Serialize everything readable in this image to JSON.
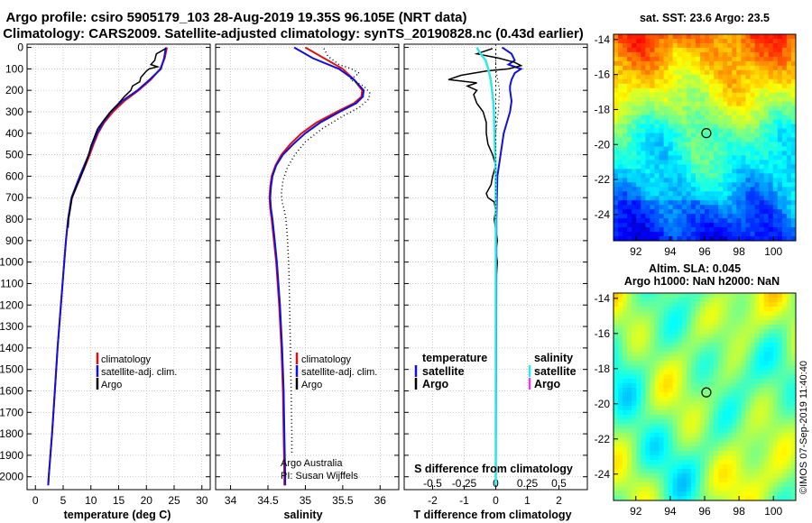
{
  "header": {
    "title_line1": "Argo profile: csiro 5905179_103 28-Aug-2019 19.35S 96.105E (NRT data)",
    "title_line2": "Climatology: CARS2009. Satellite-adjusted climatology: synTS_20190828.nc (0.43d earlier)"
  },
  "credit": {
    "line1": "Argo Australia",
    "line2": "PI: Susan Wijffels",
    "stamp": "©IMOS 07-Sep-2019 11:40:40"
  },
  "colors": {
    "climatology": "#e01010",
    "satellite": "#1010e0",
    "argo": "#000000",
    "sal_satellite": "#30e8e8",
    "sal_argo": "#e040e0"
  },
  "chart_data": [
    {
      "type": "line",
      "id": "temperature-profile",
      "xlabel": "temperature (deg C)",
      "xlim": [
        -1.5,
        31.5
      ],
      "ylim": [
        2060,
        -15
      ],
      "x_ticks": [
        0,
        5,
        10,
        15,
        20,
        25,
        30
      ],
      "x_tick_labels": [
        "0",
        "5",
        "10",
        "15",
        "20",
        "25",
        "30"
      ],
      "y_ticks": [
        0,
        100,
        200,
        300,
        400,
        500,
        600,
        700,
        800,
        900,
        1000,
        1100,
        1200,
        1300,
        1400,
        1500,
        1600,
        1700,
        1800,
        1900,
        2000
      ],
      "y_tick_labels": [
        "0",
        "100",
        "200",
        "300",
        "400",
        "500",
        "600",
        "700",
        "800",
        "900",
        "1000",
        "1100",
        "1200",
        "1300",
        "1400",
        "1500",
        "1600",
        "1700",
        "1800",
        "1900",
        "2000"
      ],
      "legend": [
        "climatology",
        "satellite-adj. clim.",
        "Argo"
      ],
      "series": [
        {
          "name": "climatology",
          "depth": [
            0,
            50,
            100,
            150,
            200,
            250,
            300,
            350,
            400,
            450,
            500,
            600,
            700,
            800,
            900,
            1000,
            1200,
            1400,
            1600,
            1800,
            2000,
            2040
          ],
          "values": [
            23.7,
            23.3,
            22.5,
            20.8,
            18.6,
            16.0,
            14.0,
            12.4,
            11.3,
            10.5,
            9.8,
            8.2,
            6.6,
            5.9,
            5.5,
            5.2,
            4.6,
            4.0,
            3.5,
            3.0,
            2.4,
            2.3
          ]
        },
        {
          "name": "satellite-adj. clim.",
          "depth": [
            0,
            50,
            100,
            150,
            200,
            250,
            300,
            350,
            400,
            450,
            500,
            600,
            700,
            800,
            900,
            1000,
            1200,
            1400,
            1600,
            1800,
            2000,
            2040
          ],
          "values": [
            23.5,
            23.2,
            22.6,
            20.6,
            18.4,
            15.6,
            13.6,
            12.2,
            11.1,
            10.3,
            9.6,
            8.0,
            6.5,
            5.9,
            5.5,
            5.2,
            4.6,
            4.0,
            3.5,
            3.0,
            2.4,
            2.3
          ]
        },
        {
          "name": "Argo",
          "depth": [
            5,
            30,
            60,
            80,
            90,
            100,
            110,
            140,
            160,
            180,
            200,
            230,
            260,
            300,
            340,
            380,
            420,
            460,
            500,
            540,
            600,
            650,
            700,
            750,
            800,
            840
          ],
          "values": [
            23.5,
            21.8,
            21.5,
            20.8,
            22.0,
            20.5,
            20.0,
            19.0,
            18.8,
            17.5,
            17.2,
            16.0,
            15.0,
            13.5,
            12.3,
            11.2,
            10.6,
            10.0,
            9.6,
            9.1,
            8.2,
            7.4,
            6.6,
            6.3,
            6.0,
            5.9
          ]
        }
      ]
    },
    {
      "type": "line",
      "id": "salinity-profile",
      "xlabel": "salinity",
      "xlim": [
        33.8,
        36.25
      ],
      "ylim": [
        2060,
        -15
      ],
      "x_ticks": [
        34,
        34.5,
        35,
        35.5,
        36
      ],
      "x_tick_labels": [
        "34",
        "34.5",
        "35",
        "35.5",
        "36"
      ],
      "legend": [
        "climatology",
        "satellite-adj. clim.",
        "Argo"
      ],
      "series": [
        {
          "name": "climatology",
          "depth": [
            0,
            50,
            100,
            150,
            200,
            230,
            260,
            300,
            350,
            400,
            450,
            500,
            550,
            600,
            650,
            700,
            750,
            800,
            900,
            1000,
            1200,
            1400,
            1600,
            1800,
            2000,
            2040
          ],
          "values": [
            35.0,
            35.25,
            35.5,
            35.65,
            35.76,
            35.75,
            35.65,
            35.42,
            35.15,
            34.95,
            34.8,
            34.68,
            34.6,
            34.55,
            34.53,
            34.52,
            34.53,
            34.55,
            34.58,
            34.61,
            34.65,
            34.68,
            34.7,
            34.71,
            34.72,
            34.72
          ]
        },
        {
          "name": "satellite-adj. clim.",
          "depth": [
            0,
            50,
            100,
            150,
            200,
            230,
            260,
            300,
            350,
            400,
            450,
            500,
            550,
            600,
            650,
            700,
            750,
            800,
            900,
            1000,
            1200,
            1400,
            1600,
            1800,
            2000,
            2040
          ],
          "values": [
            34.85,
            35.1,
            35.45,
            35.65,
            35.78,
            35.77,
            35.68,
            35.46,
            35.2,
            35.0,
            34.84,
            34.7,
            34.61,
            34.56,
            34.54,
            34.53,
            34.54,
            34.56,
            34.59,
            34.62,
            34.66,
            34.69,
            34.71,
            34.72,
            34.73,
            34.73
          ]
        },
        {
          "name": "Argo",
          "depth": [
            5,
            40,
            80,
            100,
            120,
            150,
            180,
            210,
            240,
            280,
            320,
            380,
            440,
            500,
            560,
            620,
            680,
            720,
            760,
            800,
            880,
            960,
            1040,
            1200,
            1400,
            1600,
            1800,
            1900
          ],
          "values": [
            35.25,
            35.3,
            35.45,
            35.62,
            35.72,
            35.6,
            35.78,
            35.86,
            35.85,
            35.72,
            35.5,
            35.22,
            35.0,
            34.86,
            34.76,
            34.7,
            34.68,
            34.69,
            34.72,
            34.74,
            34.76,
            34.77,
            34.78,
            34.79,
            34.8,
            34.81,
            34.82,
            34.82
          ]
        }
      ]
    },
    {
      "type": "line",
      "id": "difference-profile",
      "xlabel": "T difference from climatology",
      "x2label": "S difference from climatology",
      "xlim": [
        -2.9,
        2.9
      ],
      "x2lim": [
        -0.725,
        0.725
      ],
      "ylim": [
        2060,
        -15
      ],
      "x_ticks": [
        -2,
        -1,
        0,
        1,
        2
      ],
      "x_tick_labels": [
        "-2",
        "-1",
        "0",
        "1",
        "2"
      ],
      "x2_ticks": [
        -0.5,
        -0.25,
        0,
        0.25,
        0.5
      ],
      "x2_tick_labels": [
        "-0.5",
        "-0.25",
        "0",
        "0.25",
        "0.5"
      ],
      "legend_left_title": "temperature",
      "legend_right_title": "salinity",
      "legend_left": [
        "satellite",
        "Argo"
      ],
      "legend_right": [
        "satellite",
        "Argo"
      ],
      "series": [
        {
          "name": "temperature satellite",
          "axis": "T",
          "depth": [
            0,
            30,
            60,
            80,
            100,
            120,
            150,
            180,
            200,
            250,
            300,
            400,
            500,
            600,
            800,
            1000,
            1500,
            2040
          ],
          "values": [
            0.2,
            0.5,
            0.6,
            0.4,
            0.8,
            0.6,
            0.5,
            0.45,
            0.45,
            0.5,
            0.45,
            0.25,
            0.15,
            0.05,
            0.02,
            0.02,
            0.01,
            0.0
          ]
        },
        {
          "name": "temperature Argo",
          "axis": "T",
          "depth": [
            5,
            30,
            50,
            70,
            85,
            100,
            110,
            130,
            150,
            165,
            180,
            200,
            220,
            260,
            300,
            350,
            400,
            450,
            500,
            550,
            600,
            640,
            680,
            700,
            720,
            760,
            800,
            850,
            900,
            950,
            1000,
            1100,
            1160
          ],
          "values": [
            -0.1,
            -0.6,
            0.1,
            0.6,
            0.8,
            0.4,
            -0.3,
            -1.1,
            -1.5,
            -0.6,
            -0.9,
            -0.6,
            -0.7,
            -0.6,
            -0.4,
            -0.3,
            -0.3,
            -0.25,
            -0.1,
            0.0,
            -0.1,
            -0.15,
            -0.3,
            -0.25,
            -0.05,
            0.0,
            -0.05,
            0.0,
            0.05,
            0.0,
            0.05,
            0.0,
            0.0
          ]
        },
        {
          "name": "salinity satellite",
          "axis": "S",
          "depth": [
            0,
            30,
            60,
            100,
            150,
            200,
            250,
            300,
            400,
            500,
            600,
            800,
            1000,
            1500,
            2040
          ],
          "values": [
            -0.15,
            -0.12,
            -0.08,
            -0.06,
            -0.04,
            -0.03,
            -0.02,
            -0.015,
            -0.01,
            -0.005,
            0.0,
            0.0,
            0.0,
            0.0,
            0.0
          ]
        },
        {
          "name": "salinity Argo",
          "axis": "S",
          "depth": [
            10,
            100,
            200,
            300,
            400,
            500,
            600,
            700,
            800
          ],
          "values": [
            0.0,
            0.0,
            0.03,
            0.02,
            0.0,
            0.0,
            0.0,
            0.0,
            0.0
          ]
        }
      ]
    },
    {
      "type": "heatmap",
      "id": "sst-map",
      "title": "sat. SST: 23.6 Argo: 23.5",
      "xlim": [
        90.7,
        101.3
      ],
      "ylim": [
        -25.5,
        -13.7
      ],
      "x_ticks": [
        92,
        94,
        96,
        98,
        100
      ],
      "x_tick_labels": [
        "92",
        "94",
        "96",
        "98",
        "100"
      ],
      "y_ticks": [
        -14,
        -16,
        -18,
        -20,
        -22,
        -24
      ],
      "y_tick_labels": [
        "-14",
        "-16",
        "-18",
        "-20",
        "-22",
        "-24"
      ],
      "marker": {
        "lon": 96.1,
        "lat": -19.35
      },
      "colormap": "jet",
      "value_range": [
        21.5,
        27.0
      ]
    },
    {
      "type": "heatmap",
      "id": "sla-map",
      "title": "Altim. SLA: 0.045",
      "subtitle": "Argo h1000: NaN h2000: NaN",
      "xlim": [
        90.7,
        101.3
      ],
      "ylim": [
        -25.5,
        -13.7
      ],
      "x_ticks": [
        92,
        94,
        96,
        98,
        100
      ],
      "x_tick_labels": [
        "92",
        "94",
        "96",
        "98",
        "100"
      ],
      "y_ticks": [
        -14,
        -16,
        -18,
        -20,
        -22,
        -24
      ],
      "y_tick_labels": [
        "-14",
        "-16",
        "-18",
        "-20",
        "-22",
        "-24"
      ],
      "marker": {
        "lon": 96.1,
        "lat": -19.35
      },
      "colormap": "jet"
    }
  ]
}
